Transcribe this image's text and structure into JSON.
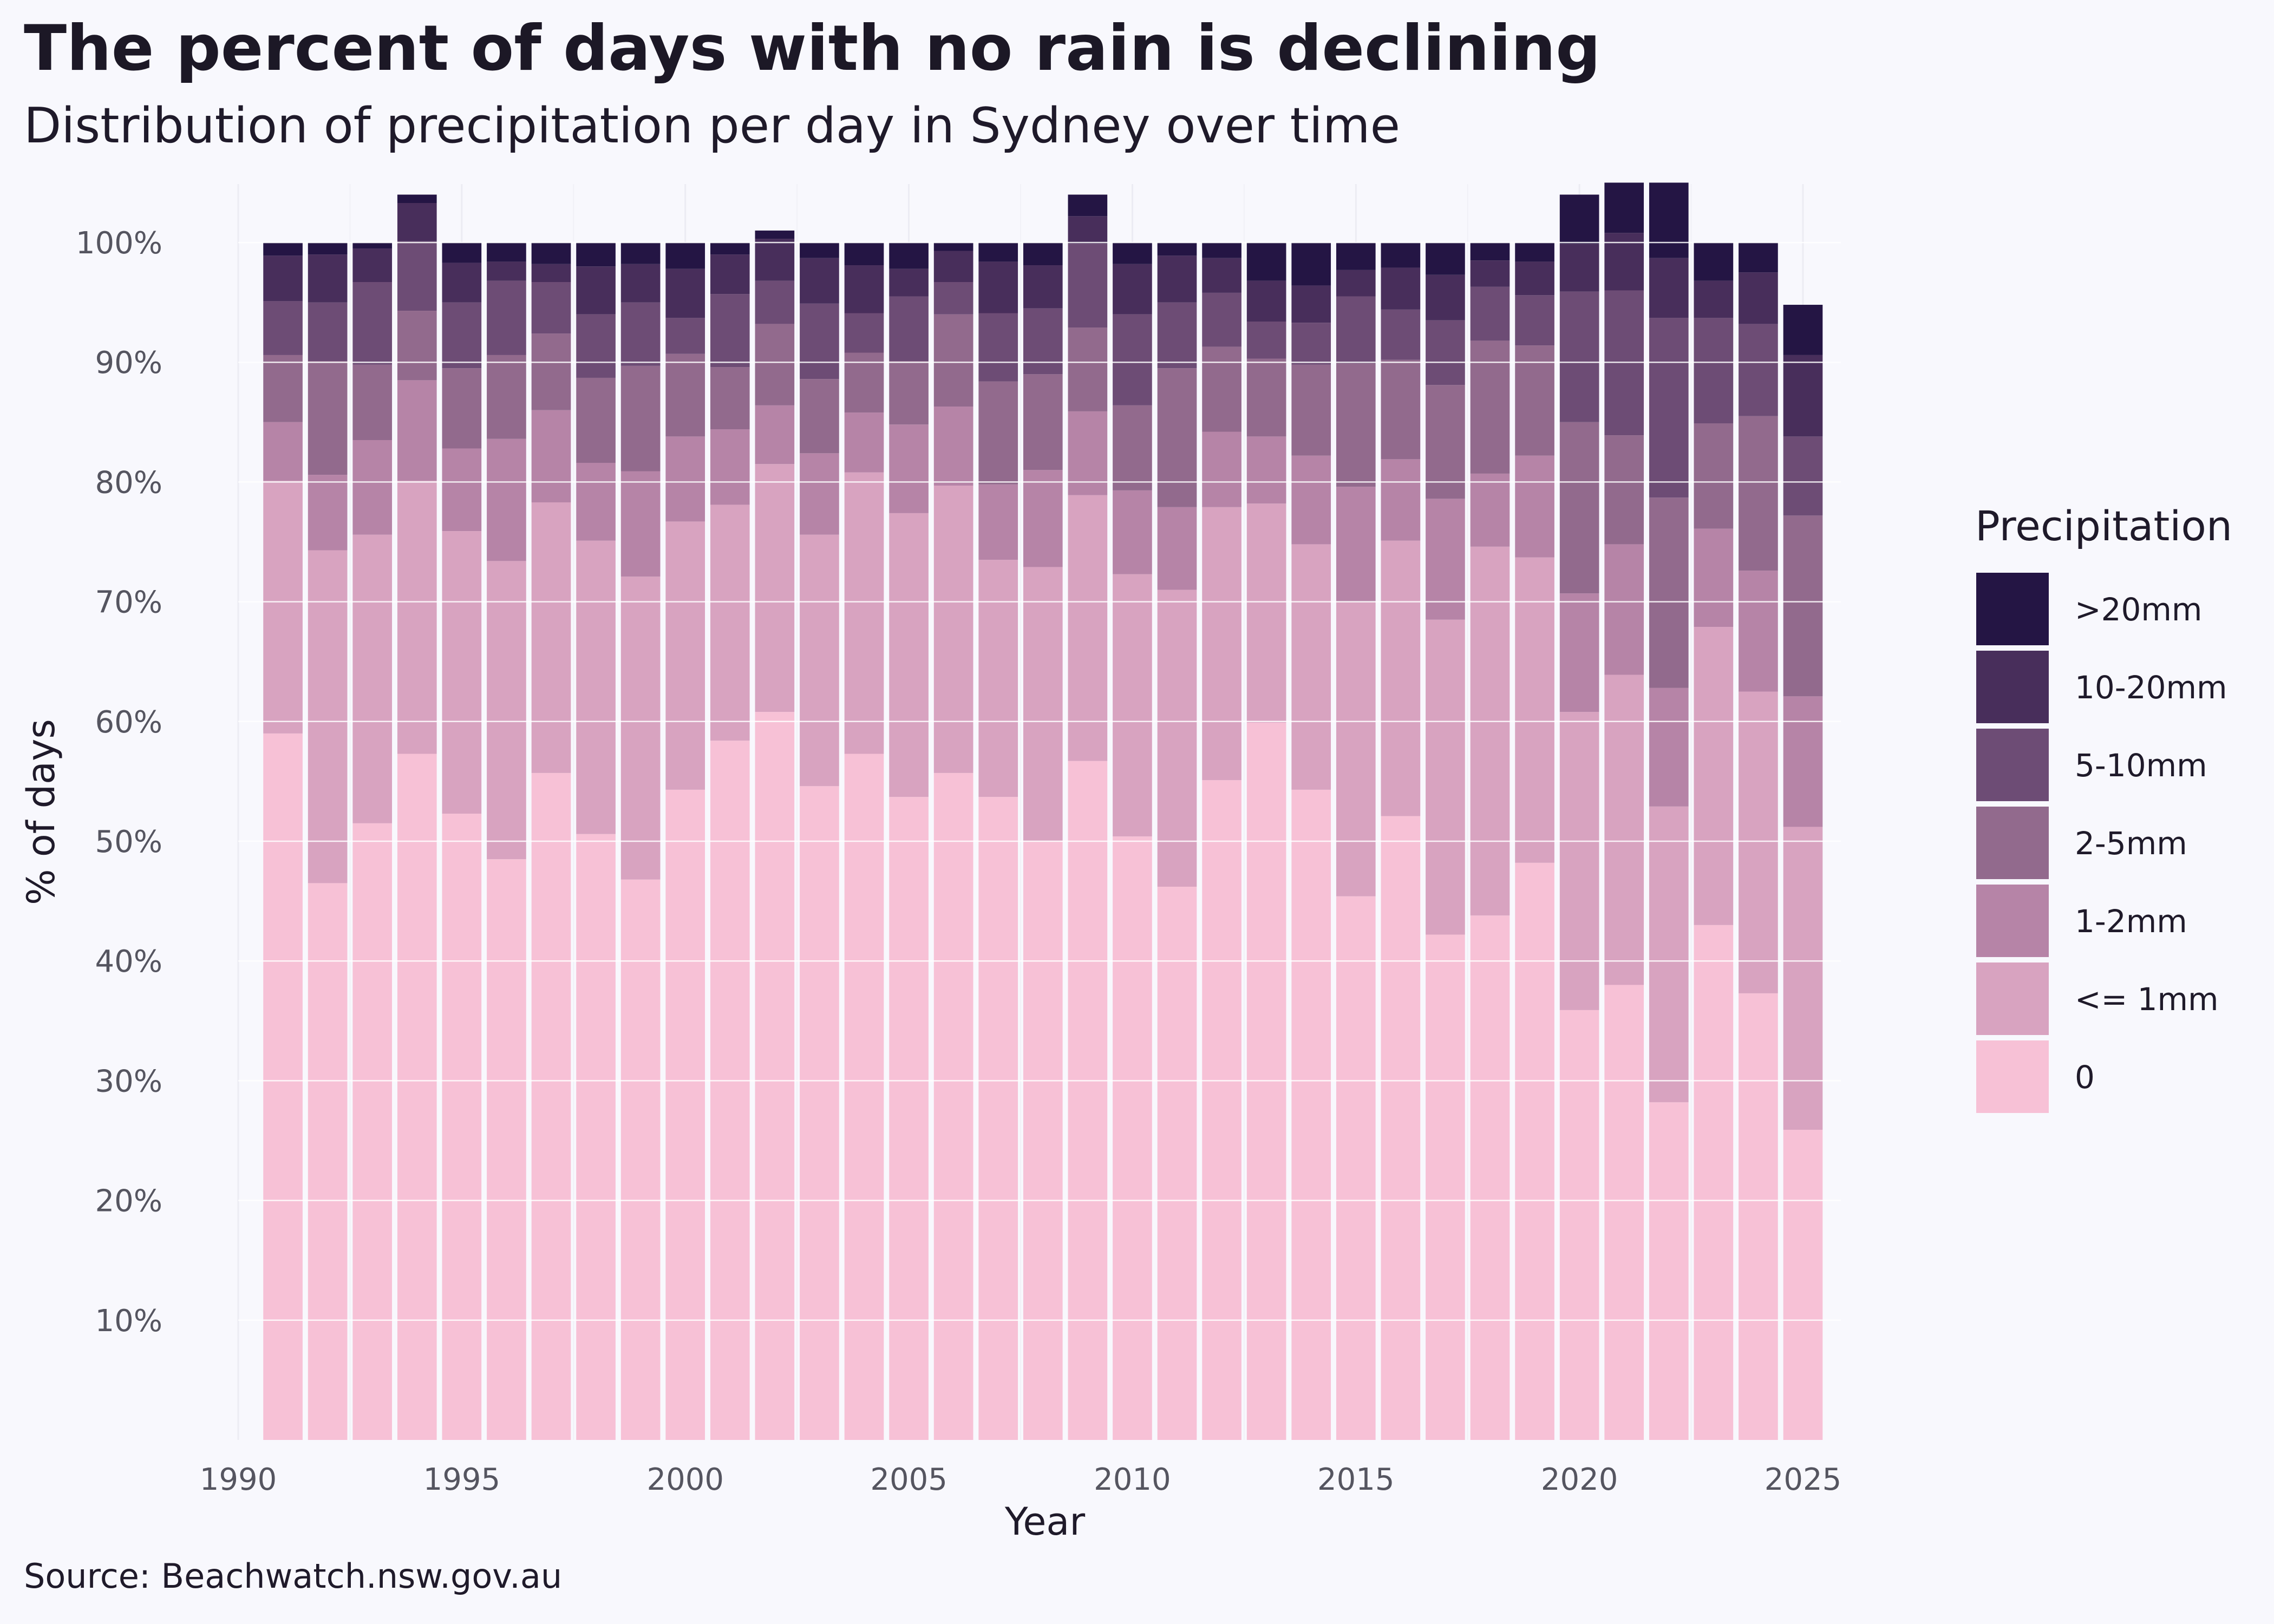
{
  "title": "The percent of days with no rain is declining",
  "subtitle": "Distribution of precipitation per day in Sydney over time",
  "source": "Source: Beachwatch.nsw.gov.au",
  "chart_data": {
    "type": "bar",
    "stacked": true,
    "xlabel": "Year",
    "ylabel": "% of days",
    "xlim": [
      1990,
      2025
    ],
    "ylim": [
      0,
      100
    ],
    "x_ticks": [
      "1990",
      "1995",
      "2000",
      "2005",
      "2010",
      "2015",
      "2020",
      "2025"
    ],
    "y_ticks": [
      "10%",
      "20%",
      "30%",
      "40%",
      "50%",
      "60%",
      "70%",
      "80%",
      "90%",
      "100%"
    ],
    "legend_title": "Precipitation",
    "legend_position": "right",
    "grid": true,
    "x": [
      1991,
      1992,
      1993,
      1994,
      1995,
      1996,
      1997,
      1998,
      1999,
      2000,
      2001,
      2002,
      2003,
      2004,
      2005,
      2006,
      2007,
      2008,
      2009,
      2010,
      2011,
      2012,
      2013,
      2014,
      2015,
      2016,
      2017,
      2018,
      2019,
      2020,
      2021,
      2022,
      2023,
      2024,
      2025
    ],
    "series": [
      {
        "name": "0",
        "color": "#f7c1d6",
        "values": [
          59,
          46.5,
          51.5,
          57.3,
          52.3,
          48.5,
          55.7,
          50.6,
          46.8,
          54.3,
          58.4,
          60.8,
          54.6,
          57.3,
          53.7,
          55.7,
          53.7,
          50,
          56.7,
          50.4,
          46.2,
          55.1,
          59.9,
          54.3,
          45.4,
          52.1,
          42.2,
          43.8,
          48.2,
          35.9,
          38,
          28.2,
          43,
          37.3,
          25.9
        ]
      },
      {
        "name": "<= 1mm",
        "color": "#d8a3c0",
        "values": [
          21.1,
          27.8,
          24.1,
          22.8,
          23.6,
          24.9,
          22.6,
          24.5,
          25.3,
          22.4,
          19.7,
          20.7,
          21,
          23.5,
          23.7,
          24,
          19.8,
          22.9,
          22.2,
          21.9,
          24.8,
          22.8,
          18.3,
          20.5,
          24.6,
          23,
          26.3,
          30.8,
          25.5,
          24.9,
          25.9,
          24.7,
          24.9,
          25.2,
          25.3
        ]
      },
      {
        "name": "1-2mm",
        "color": "#b684a7",
        "values": [
          4.9,
          6.3,
          7.9,
          8.4,
          6.9,
          10.2,
          7.7,
          6.5,
          8.8,
          7.1,
          6.3,
          4.9,
          6.8,
          5,
          7.4,
          6.6,
          6.3,
          8.1,
          7,
          7,
          6.9,
          6.3,
          5.6,
          7.4,
          9.6,
          6.8,
          10.1,
          6.1,
          8.5,
          9.9,
          10.9,
          9.9,
          8.2,
          10.1,
          10.9
        ]
      },
      {
        "name": "2-5mm",
        "color": "#926a8d",
        "values": [
          5.6,
          9.5,
          6.3,
          5.8,
          6.7,
          7,
          6.4,
          7.1,
          8.8,
          6.9,
          5.2,
          6.8,
          6.2,
          5,
          5.3,
          7.7,
          8.6,
          8,
          7,
          7.1,
          11.6,
          7.1,
          6.5,
          7.6,
          10.3,
          8.3,
          9.5,
          11.1,
          9.2,
          14.3,
          9.1,
          15.9,
          8.8,
          12.9,
          15.1
        ]
      },
      {
        "name": "5-10mm",
        "color": "#6d4c75",
        "values": [
          4.5,
          4.9,
          6.9,
          5.8,
          5.5,
          6.2,
          4.3,
          5.3,
          5.3,
          3,
          6.1,
          3.6,
          6.3,
          3.3,
          5.4,
          2.7,
          5.7,
          5.5,
          7,
          7.6,
          5.5,
          4.5,
          3.1,
          3.5,
          5.6,
          4.2,
          5.4,
          4.5,
          4.2,
          10.9,
          12.1,
          15,
          8.8,
          7.7,
          6.6
        ]
      },
      {
        "name": "10-20mm",
        "color": "#482e5b",
        "values": [
          3.8,
          4,
          2.8,
          3.2,
          3.3,
          1.6,
          1.5,
          4,
          3.2,
          4.1,
          3.3,
          3.5,
          3.8,
          4,
          2.3,
          2.6,
          4.3,
          3.6,
          2.3,
          4.2,
          3.9,
          2.9,
          3.4,
          3.1,
          2.2,
          3.5,
          3.8,
          2.2,
          2.8,
          4,
          4.8,
          5,
          3.1,
          4.3,
          6.8
        ]
      },
      {
        "name": ">20mm",
        "color": "#241544",
        "values": [
          1.1,
          1,
          0.5,
          0.7,
          1.7,
          1.6,
          1.8,
          2,
          1.8,
          2.2,
          1,
          0.7,
          1.3,
          1.9,
          2.2,
          0.7,
          1.6,
          1.9,
          1.8,
          1.8,
          1.1,
          1.3,
          3.2,
          3.6,
          2.3,
          2.1,
          2.7,
          1.5,
          1.6,
          4.1,
          4.2,
          6.3,
          3.2,
          2.5,
          4.2
        ]
      }
    ]
  }
}
